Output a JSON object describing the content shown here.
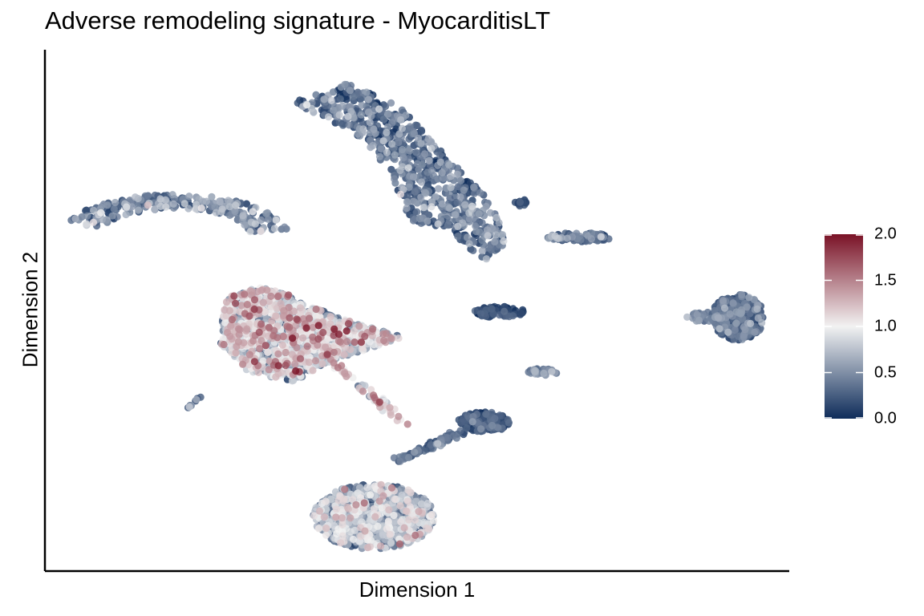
{
  "chart_data": {
    "type": "scatter",
    "title": "Adverse remodeling signature - MyocarditisLT",
    "xlabel": "Dimension 1",
    "ylabel": "Dimension 2",
    "grid": false,
    "legend": {
      "position": "right",
      "type": "colorbar",
      "ticks": [
        "0.0",
        "0.5",
        "1.0",
        "1.5",
        "2.0"
      ],
      "range": [
        0,
        2
      ],
      "colors": {
        "low": "#0e2c5a",
        "mid": "#f2f2f2",
        "high": "#7a1226"
      }
    },
    "xlim": [
      0,
      100
    ],
    "ylim": [
      0,
      100
    ],
    "clusters": [
      {
        "name": "cluster-arc-left",
        "shape": "arc",
        "cx": 17,
        "cy": 65,
        "r": 13,
        "a0": 200,
        "a1": 350,
        "thickness": 2.6,
        "n": 260,
        "mean": 0.35,
        "sd": 0.28
      },
      {
        "name": "cluster-top-center",
        "shape": "poly",
        "path": [
          [
            33,
            92
          ],
          [
            40,
            96
          ],
          [
            48,
            91
          ],
          [
            52,
            84
          ],
          [
            60,
            72
          ],
          [
            62,
            64
          ],
          [
            59,
            60
          ],
          [
            54,
            67
          ],
          [
            49,
            68
          ],
          [
            46,
            79
          ],
          [
            40,
            87
          ]
        ],
        "n": 700,
        "mean": 0.3,
        "sd": 0.25
      },
      {
        "name": "cluster-tail-right",
        "shape": "ellipse",
        "cx": 72,
        "cy": 65,
        "rx": 4.5,
        "ry": 0.9,
        "n": 70,
        "mean": 0.35,
        "sd": 0.3
      },
      {
        "name": "cluster-small-top",
        "shape": "ellipse",
        "cx": 64,
        "cy": 72,
        "rx": 0.8,
        "ry": 0.8,
        "n": 12,
        "mean": 0.1,
        "sd": 0.1
      },
      {
        "name": "cluster-large-left",
        "shape": "poly",
        "path": [
          [
            24,
            53
          ],
          [
            28,
            55
          ],
          [
            32,
            54
          ],
          [
            34,
            52
          ],
          [
            41,
            48
          ],
          [
            48,
            45
          ],
          [
            44,
            43
          ],
          [
            38,
            40
          ],
          [
            33,
            36
          ],
          [
            27,
            38
          ],
          [
            23,
            44
          ]
        ],
        "n": 1400,
        "mean": 0.8,
        "sd": 0.42
      },
      {
        "name": "cluster-stream",
        "shape": "line",
        "x0": 38,
        "y0": 40,
        "x1": 48,
        "y1": 28,
        "width": 1.4,
        "n": 50,
        "mean": 1.1,
        "sd": 0.3
      },
      {
        "name": "cluster-mid-small",
        "shape": "ellipse",
        "cx": 61,
        "cy": 50,
        "rx": 3.5,
        "ry": 1.1,
        "n": 80,
        "mean": 0.1,
        "sd": 0.12
      },
      {
        "name": "cluster-right-blob",
        "shape": "ellipse",
        "cx": 93.5,
        "cy": 49,
        "rx": 3.6,
        "ry": 4.6,
        "n": 320,
        "mean": 0.25,
        "sd": 0.2
      },
      {
        "name": "cluster-right-tail",
        "shape": "ellipse",
        "cx": 89,
        "cy": 49,
        "rx": 2.5,
        "ry": 1.0,
        "n": 30,
        "mean": 0.45,
        "sd": 0.25
      },
      {
        "name": "cluster-mid-lower",
        "shape": "ellipse",
        "cx": 67,
        "cy": 38,
        "rx": 2.0,
        "ry": 0.7,
        "n": 30,
        "mean": 0.4,
        "sd": 0.2
      },
      {
        "name": "cluster-tiny-left",
        "shape": "line",
        "x0": 19,
        "y0": 31,
        "x1": 20.5,
        "y1": 33,
        "width": 0.5,
        "n": 10,
        "mean": 0.5,
        "sd": 0.2
      },
      {
        "name": "cluster-lower-right-small",
        "shape": "ellipse",
        "cx": 59,
        "cy": 28,
        "rx": 3.5,
        "ry": 2.0,
        "n": 160,
        "mean": 0.15,
        "sd": 0.15
      },
      {
        "name": "cluster-arc-connect",
        "shape": "line",
        "x0": 47,
        "y0": 20,
        "x1": 56,
        "y1": 26,
        "width": 1.2,
        "n": 70,
        "mean": 0.3,
        "sd": 0.2
      },
      {
        "name": "cluster-bottom",
        "shape": "ellipse",
        "cx": 44,
        "cy": 9,
        "rx": 8.2,
        "ry": 6.5,
        "n": 900,
        "mean": 0.55,
        "sd": 0.36
      }
    ]
  }
}
